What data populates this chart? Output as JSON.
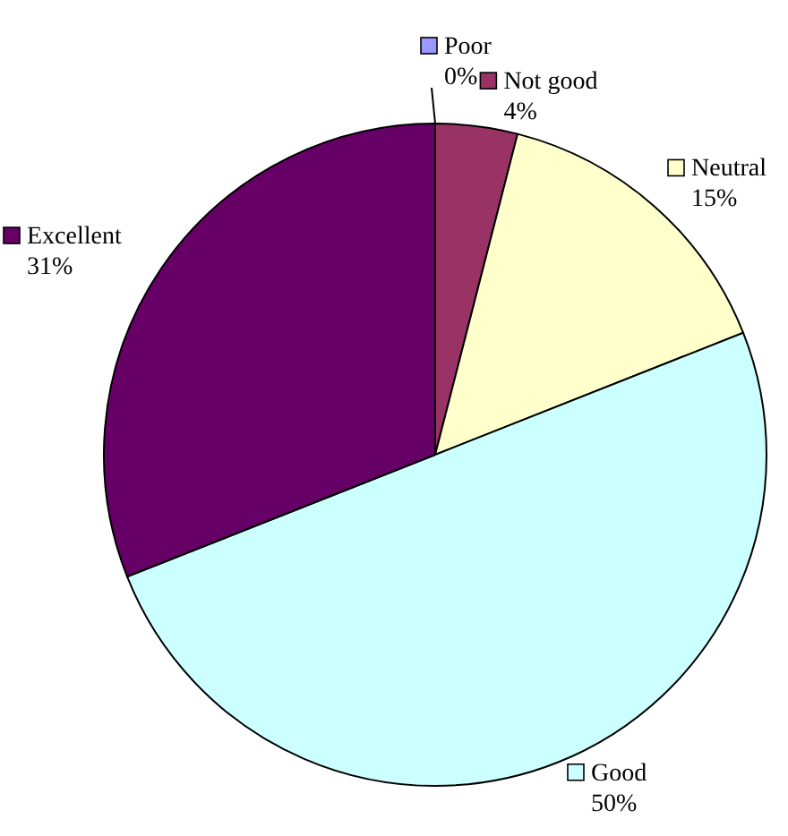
{
  "chart_data": {
    "type": "pie",
    "categories": [
      "Poor",
      "Not good",
      "Neutral",
      "Good",
      "Excellent"
    ],
    "values": [
      0,
      4,
      15,
      50,
      31
    ],
    "colors": [
      "#9999ff",
      "#993366",
      "#ffffcc",
      "#ccffff",
      "#660066"
    ],
    "value_labels": [
      "0%",
      "4%",
      "15%",
      "50%",
      "31%"
    ],
    "legend": true
  }
}
